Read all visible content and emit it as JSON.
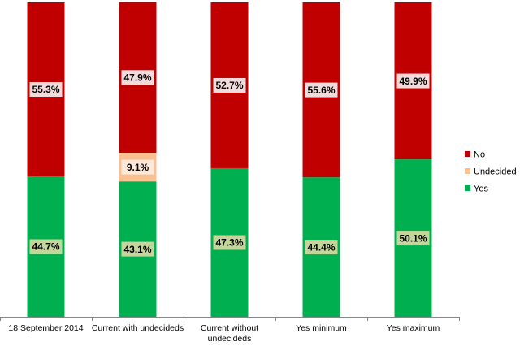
{
  "chart_data": {
    "type": "bar",
    "stacked": true,
    "percent": true,
    "categories": [
      [
        "18 September 2014"
      ],
      [
        "Current with undecideds"
      ],
      [
        "Current without",
        "undecideds"
      ],
      [
        "Yes minimum"
      ],
      [
        "Yes maximum"
      ]
    ],
    "series": [
      {
        "name": "Yes",
        "color": "#00b050",
        "label_bg": "#c4d79b",
        "values": [
          44.7,
          43.1,
          47.3,
          44.4,
          50.1
        ],
        "labels": [
          "44.7%",
          "43.1%",
          "47.3%",
          "44.4%",
          "50.1%"
        ]
      },
      {
        "name": "Undecided",
        "color": "#fac090",
        "label_bg": "#fde9d9",
        "values": [
          0,
          9.1,
          0,
          0,
          0
        ],
        "labels": [
          "",
          "9.1%",
          "",
          "",
          ""
        ]
      },
      {
        "name": "No",
        "color": "#c00000",
        "label_bg": "#f2dcdb",
        "values": [
          55.3,
          47.9,
          52.7,
          55.6,
          49.9
        ],
        "labels": [
          "55.3%",
          "47.9%",
          "52.7%",
          "55.6%",
          "49.9%"
        ]
      }
    ],
    "legend": {
      "position": "right",
      "entries": [
        {
          "name": "No",
          "color": "#c00000"
        },
        {
          "name": "Undecided",
          "color": "#fac090"
        },
        {
          "name": "Yes",
          "color": "#00b050"
        }
      ]
    },
    "ylim": [
      0,
      100
    ],
    "title": "",
    "xlabel": "",
    "ylabel": "",
    "grid": false
  }
}
